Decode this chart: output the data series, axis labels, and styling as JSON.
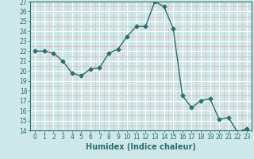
{
  "title": "",
  "xlabel": "Humidex (Indice chaleur)",
  "ylabel": "",
  "x_values": [
    0,
    1,
    2,
    3,
    4,
    5,
    6,
    7,
    8,
    9,
    10,
    11,
    12,
    13,
    14,
    15,
    16,
    17,
    18,
    19,
    20,
    21,
    22,
    23
  ],
  "y_values": [
    22.0,
    22.0,
    21.8,
    21.0,
    19.8,
    19.5,
    20.2,
    20.3,
    21.8,
    22.2,
    23.5,
    24.5,
    24.5,
    27.0,
    26.5,
    24.3,
    17.5,
    16.3,
    17.0,
    17.2,
    15.1,
    15.3,
    13.8,
    14.2
  ],
  "ylim": [
    14,
    27
  ],
  "xlim": [
    -0.5,
    23.5
  ],
  "yticks": [
    14,
    15,
    16,
    17,
    18,
    19,
    20,
    21,
    22,
    23,
    24,
    25,
    26,
    27
  ],
  "xticks": [
    0,
    1,
    2,
    3,
    4,
    5,
    6,
    7,
    8,
    9,
    10,
    11,
    12,
    13,
    14,
    15,
    16,
    17,
    18,
    19,
    20,
    21,
    22,
    23
  ],
  "line_color": "#2d6e6e",
  "marker": "D",
  "marker_size": 2.5,
  "bg_color": "#cce8e8",
  "grid_major_color": "#ffffff",
  "grid_minor_color": "#e8b8b8",
  "label_color": "#2d6e6e",
  "spine_color": "#2d6e6e",
  "tick_fontsize": 5.5,
  "xlabel_fontsize": 7.0,
  "figsize": [
    3.2,
    2.0
  ],
  "dpi": 100
}
